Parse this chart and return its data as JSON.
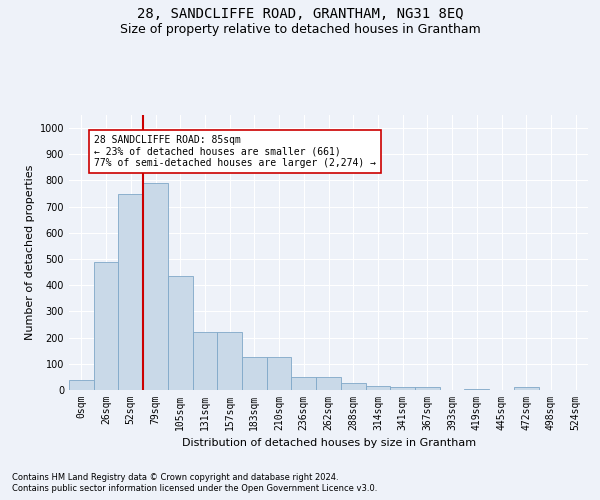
{
  "title": "28, SANDCLIFFE ROAD, GRANTHAM, NG31 8EQ",
  "subtitle": "Size of property relative to detached houses in Grantham",
  "xlabel": "Distribution of detached houses by size in Grantham",
  "ylabel": "Number of detached properties",
  "footnote1": "Contains HM Land Registry data © Crown copyright and database right 2024.",
  "footnote2": "Contains public sector information licensed under the Open Government Licence v3.0.",
  "bar_values": [
    40,
    490,
    750,
    790,
    435,
    220,
    220,
    125,
    125,
    50,
    50,
    25,
    15,
    10,
    10,
    0,
    5,
    0,
    10,
    0,
    0
  ],
  "x_labels": [
    "0sqm",
    "26sqm",
    "52sqm",
    "79sqm",
    "105sqm",
    "131sqm",
    "157sqm",
    "183sqm",
    "210sqm",
    "236sqm",
    "262sqm",
    "288sqm",
    "314sqm",
    "341sqm",
    "367sqm",
    "393sqm",
    "419sqm",
    "445sqm",
    "472sqm",
    "498sqm",
    "524sqm"
  ],
  "bar_color": "#c9d9e8",
  "bar_edge_color": "#7fa8c8",
  "vline_x": 2.5,
  "vline_color": "#cc0000",
  "annotation_text": "28 SANDCLIFFE ROAD: 85sqm\n← 23% of detached houses are smaller (661)\n77% of semi-detached houses are larger (2,274) →",
  "annotation_box_color": "#ffffff",
  "annotation_box_edge": "#cc0000",
  "ylim": [
    0,
    1050
  ],
  "yticks": [
    0,
    100,
    200,
    300,
    400,
    500,
    600,
    700,
    800,
    900,
    1000
  ],
  "title_fontsize": 10,
  "subtitle_fontsize": 9,
  "label_fontsize": 8,
  "tick_fontsize": 7,
  "annot_fontsize": 7,
  "footnote_fontsize": 6,
  "background_color": "#eef2f9",
  "grid_color": "#ffffff"
}
